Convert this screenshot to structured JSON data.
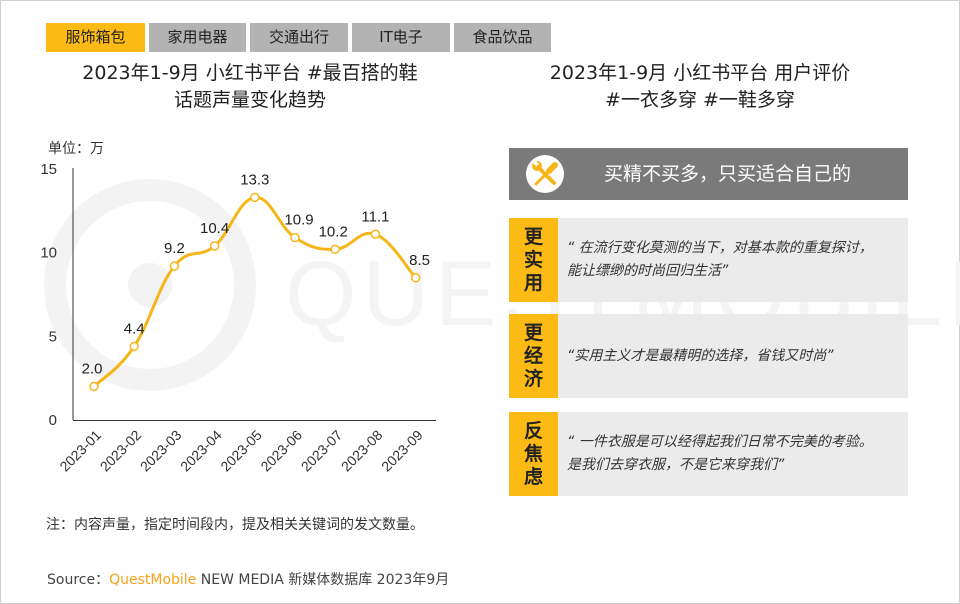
{
  "tabs": [
    {
      "label": "服饰箱包",
      "active": true
    },
    {
      "label": "家用电器",
      "active": false
    },
    {
      "label": "交通出行",
      "active": false
    },
    {
      "label": "IT电子",
      "active": false
    },
    {
      "label": "食品饮品",
      "active": false
    }
  ],
  "left": {
    "title_line1": "2023年1-9月 小红书平台 #最百搭的鞋",
    "title_line2": "话题声量变化趋势",
    "unit": "单位：万",
    "note": "注：内容声量，指定时间段内，提及相关关键词的发文数量。"
  },
  "right": {
    "title_line1": "2023年1-9月 小红书平台 用户评价",
    "title_line2": "#一衣多穿 #一鞋多穿",
    "headline": {
      "icon": "tools-icon",
      "text": "买精不买多，只买适合自己的"
    },
    "cards": [
      {
        "tag": [
          "更",
          "实",
          "用"
        ],
        "quote_line1": "“ 在流行变化莫测的当下，对基本款的重复探讨，",
        "quote_line2": "能让缥缈的时尚回归生活”"
      },
      {
        "tag": [
          "更",
          "经",
          "济"
        ],
        "quote_line1": "“实用主义才是最精明的选择，省钱又时尚”",
        "quote_line2": ""
      },
      {
        "tag": [
          "反",
          "焦",
          "虑"
        ],
        "quote_line1": "“ 一件衣服是可以经得起我们日常不完美的考验。",
        "quote_line2": "是我们去穿衣服，不是它来穿我们”"
      }
    ]
  },
  "source": {
    "prefix": "Source：",
    "brand": "QuestMobile",
    "suffix": " NEW MEDIA 新媒体数据库 2023年9月"
  },
  "watermark": "QUESTMOBILE",
  "colors": {
    "accent": "#fbbb14",
    "line": "#f6b619",
    "tab_inactive": "#b3b3b3",
    "headline_bg": "#7a7a7a",
    "card_bg": "#ebebeb",
    "brand": "#f4a51c"
  },
  "chart_data": {
    "type": "line",
    "title": "2023年1-9月 小红书平台 #最百搭的鞋 话题声量变化趋势",
    "xlabel": "",
    "ylabel": "单位：万",
    "categories": [
      "2023-01",
      "2023-02",
      "2023-03",
      "2023-04",
      "2023-05",
      "2023-06",
      "2023-07",
      "2023-08",
      "2023-09"
    ],
    "values": [
      2.0,
      4.4,
      9.2,
      10.4,
      13.3,
      10.9,
      10.2,
      11.1,
      8.5
    ],
    "labels": [
      "2.0",
      "4.4",
      "9.2",
      "10.4",
      "13.3",
      "10.9",
      "10.2",
      "11.1",
      "8.5"
    ],
    "ylim": [
      0,
      15
    ],
    "yticks": [
      0,
      5,
      10,
      15
    ],
    "grid": false,
    "legend": null,
    "smooth": true
  }
}
